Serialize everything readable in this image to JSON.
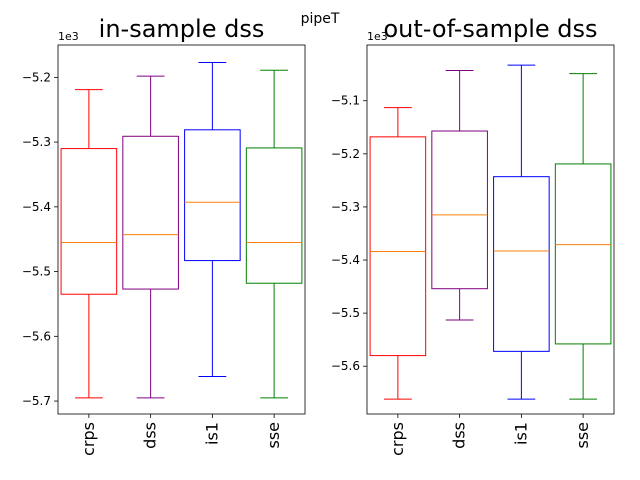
{
  "suptitle": "pipeT",
  "chart_data": [
    {
      "type": "boxplot",
      "title": "in-sample dss",
      "offset_text": "1e3",
      "categories": [
        "crps",
        "dss",
        "is1",
        "sse"
      ],
      "colors": [
        "#ff0000",
        "#800080",
        "#0000ff",
        "#008000"
      ],
      "median_color": "#ff7f0e",
      "ylim": [
        -5.72,
        -5.15
      ],
      "yticks": [
        -5.2,
        -5.3,
        -5.4,
        -5.5,
        -5.6,
        -5.7
      ],
      "ytick_labels": [
        "−5.2",
        "−5.3",
        "−5.4",
        "−5.5",
        "−5.6",
        "−5.7"
      ],
      "series": [
        {
          "category": "crps",
          "whislo": -5.695,
          "q1": -5.535,
          "med": -5.455,
          "q3": -5.31,
          "whishi": -5.219
        },
        {
          "category": "dss",
          "whislo": -5.695,
          "q1": -5.527,
          "med": -5.443,
          "q3": -5.291,
          "whishi": -5.198
        },
        {
          "category": "is1",
          "whislo": -5.662,
          "q1": -5.483,
          "med": -5.393,
          "q3": -5.281,
          "whishi": -5.177
        },
        {
          "category": "sse",
          "whislo": -5.695,
          "q1": -5.518,
          "med": -5.455,
          "q3": -5.309,
          "whishi": -5.189
        }
      ]
    },
    {
      "type": "boxplot",
      "title": "out-of-sample dss",
      "offset_text": "1e3",
      "categories": [
        "crps",
        "dss",
        "is1",
        "sse"
      ],
      "colors": [
        "#ff0000",
        "#800080",
        "#0000ff",
        "#008000"
      ],
      "median_color": "#ff7f0e",
      "ylim": [
        -5.69,
        -4.995
      ],
      "yticks": [
        -5.1,
        -5.2,
        -5.3,
        -5.4,
        -5.5,
        -5.6
      ],
      "ytick_labels": [
        "−5.1",
        "−5.2",
        "−5.3",
        "−5.4",
        "−5.5",
        "−5.6"
      ],
      "series": [
        {
          "category": "crps",
          "whislo": -5.662,
          "q1": -5.58,
          "med": -5.384,
          "q3": -5.168,
          "whishi": -5.113
        },
        {
          "category": "dss",
          "whislo": -5.513,
          "q1": -5.454,
          "med": -5.315,
          "q3": -5.157,
          "whishi": -5.043
        },
        {
          "category": "is1",
          "whislo": -5.662,
          "q1": -5.572,
          "med": -5.383,
          "q3": -5.243,
          "whishi": -5.033
        },
        {
          "category": "sse",
          "whislo": -5.662,
          "q1": -5.558,
          "med": -5.371,
          "q3": -5.219,
          "whishi": -5.049
        }
      ]
    }
  ]
}
